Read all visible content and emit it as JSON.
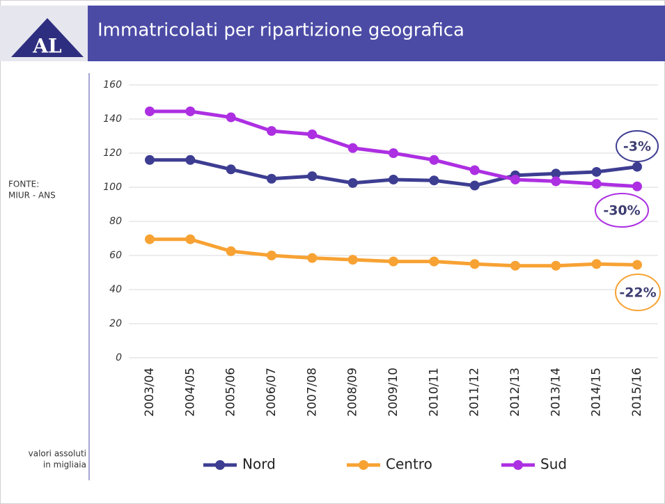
{
  "logo": "AL",
  "side_note": {
    "source": [
      "FONTE:",
      "MIUR - ANS"
    ],
    "units": [
      "valori assoluti",
      "in migliaia"
    ]
  },
  "chart_data": {
    "type": "line",
    "title": "Immatricolati per ripartizione geografica",
    "categories": [
      "2003/04",
      "2004/05",
      "2005/06",
      "2006/07",
      "2007/08",
      "2008/09",
      "2009/10",
      "2010/11",
      "2011/12",
      "2012/13",
      "2013/14",
      "2014/15",
      "2015/16"
    ],
    "series": [
      {
        "name": "Nord",
        "color": "#3d3d92",
        "values": [
          116,
          116,
          110.5,
          105,
          106.5,
          102.5,
          104.5,
          104,
          101,
          107,
          108,
          109,
          112
        ]
      },
      {
        "name": "Centro",
        "color": "#f7a233",
        "values": [
          69.5,
          69.5,
          62.5,
          60,
          58.5,
          57.5,
          56.5,
          56.5,
          55,
          54,
          54,
          55,
          54.5
        ]
      },
      {
        "name": "Sud",
        "color": "#ad2fe2",
        "values": [
          144.5,
          144.5,
          141,
          133,
          131,
          123,
          120,
          116,
          110,
          104.5,
          103.5,
          102,
          100.5
        ]
      }
    ],
    "annotations": [
      {
        "text": "-3%",
        "color": "#3d3d92"
      },
      {
        "text": "-30%",
        "color": "#ad2fe2"
      },
      {
        "text": "-22%",
        "color": "#f7a233"
      }
    ],
    "ylim": [
      0,
      160
    ],
    "yticks": [
      0,
      20,
      40,
      60,
      80,
      100,
      120,
      140,
      160
    ],
    "grid": true,
    "legend": "bottom"
  }
}
